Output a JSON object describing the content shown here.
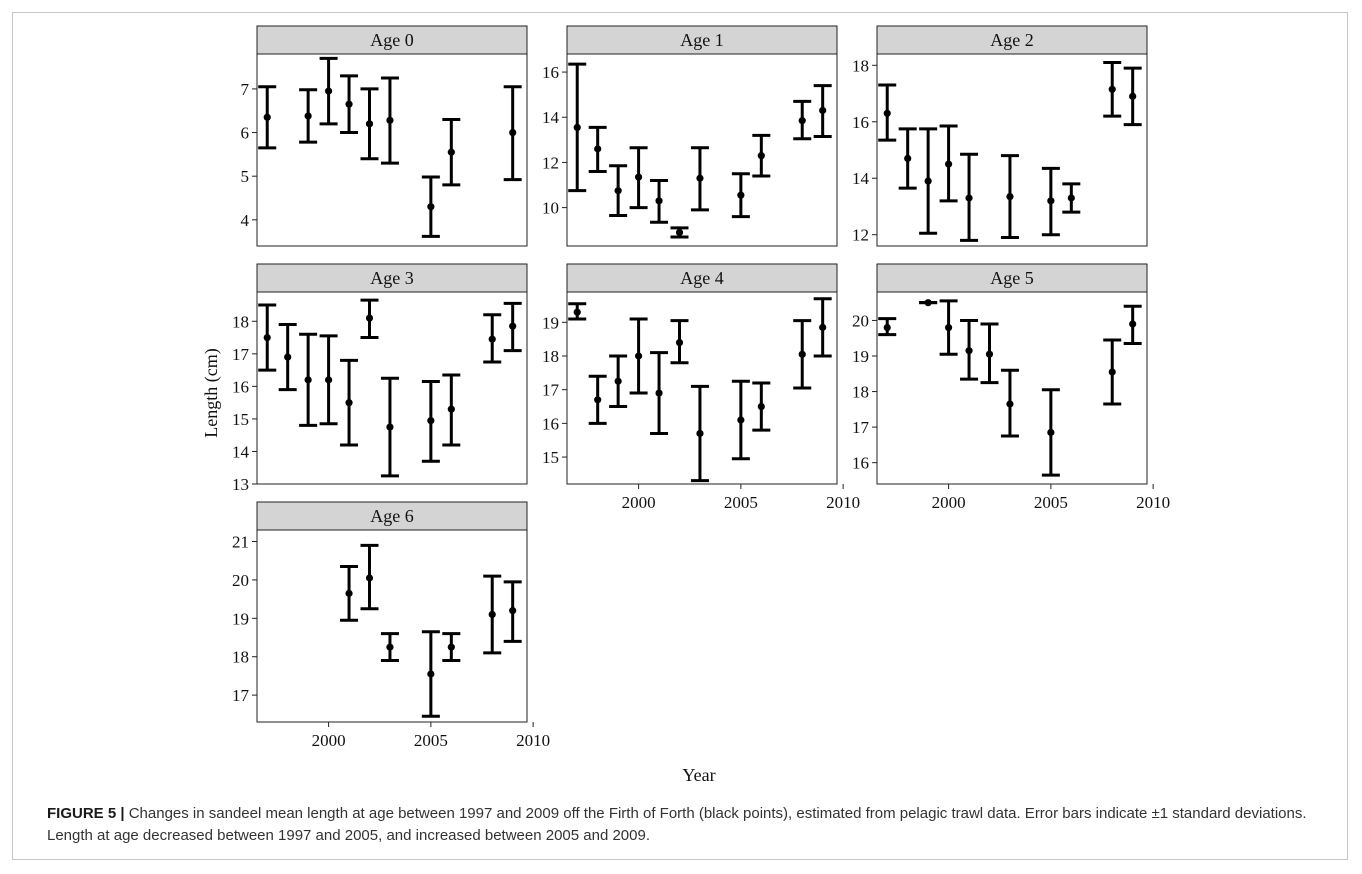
{
  "figure": {
    "ylabel": "Length (cm)",
    "xlabel": "Year",
    "caption_label": "FIGURE 5 |",
    "caption_text": " Changes in sandeel mean length at age between 1997 and 2009 off the Firth of Forth (black points), estimated from pelagic trawl data. Error bars indicate ±1 standard deviations. Length at age decreased between 1997 and 2005, and increased between 2005 and 2009."
  },
  "chart_data": [
    {
      "type": "scatter",
      "title": "Age 0",
      "xlim": [
        1996.5,
        2009.7
      ],
      "ylim": [
        3.4,
        7.8
      ],
      "yticks": [
        4,
        5,
        6,
        7
      ],
      "xticks": [],
      "grid": false,
      "points": [
        {
          "x": 1997,
          "y": 6.35,
          "lo": 5.65,
          "hi": 7.05
        },
        {
          "x": 1999,
          "y": 6.38,
          "lo": 5.78,
          "hi": 6.98
        },
        {
          "x": 2000,
          "y": 6.95,
          "lo": 6.2,
          "hi": 7.7
        },
        {
          "x": 2001,
          "y": 6.65,
          "lo": 6.0,
          "hi": 7.3
        },
        {
          "x": 2002,
          "y": 6.2,
          "lo": 5.4,
          "hi": 7.0
        },
        {
          "x": 2003,
          "y": 6.28,
          "lo": 5.3,
          "hi": 7.25
        },
        {
          "x": 2005,
          "y": 4.3,
          "lo": 3.62,
          "hi": 4.98
        },
        {
          "x": 2006,
          "y": 5.55,
          "lo": 4.8,
          "hi": 6.3
        },
        {
          "x": 2009,
          "y": 6.0,
          "lo": 4.92,
          "hi": 7.05
        }
      ]
    },
    {
      "type": "scatter",
      "title": "Age 1",
      "xlim": [
        1996.5,
        2009.7
      ],
      "ylim": [
        8.3,
        16.8
      ],
      "yticks": [
        10,
        12,
        14,
        16
      ],
      "xticks": [],
      "grid": false,
      "points": [
        {
          "x": 1997,
          "y": 13.55,
          "lo": 10.75,
          "hi": 16.35
        },
        {
          "x": 1998,
          "y": 12.6,
          "lo": 11.6,
          "hi": 13.55
        },
        {
          "x": 1999,
          "y": 10.75,
          "lo": 9.65,
          "hi": 11.85
        },
        {
          "x": 2000,
          "y": 11.35,
          "lo": 10.0,
          "hi": 12.65
        },
        {
          "x": 2001,
          "y": 10.3,
          "lo": 9.35,
          "hi": 11.2
        },
        {
          "x": 2002,
          "y": 8.9,
          "lo": 8.7,
          "hi": 9.1
        },
        {
          "x": 2003,
          "y": 11.3,
          "lo": 9.9,
          "hi": 12.65
        },
        {
          "x": 2005,
          "y": 10.55,
          "lo": 9.6,
          "hi": 11.5
        },
        {
          "x": 2006,
          "y": 12.3,
          "lo": 11.4,
          "hi": 13.2
        },
        {
          "x": 2008,
          "y": 13.85,
          "lo": 13.05,
          "hi": 14.7
        },
        {
          "x": 2009,
          "y": 14.3,
          "lo": 13.15,
          "hi": 15.4
        }
      ]
    },
    {
      "type": "scatter",
      "title": "Age 2",
      "xlim": [
        1996.5,
        2009.7
      ],
      "ylim": [
        11.6,
        18.4
      ],
      "yticks": [
        12,
        14,
        16,
        18
      ],
      "xticks": [],
      "grid": false,
      "points": [
        {
          "x": 1997,
          "y": 16.3,
          "lo": 15.35,
          "hi": 17.3
        },
        {
          "x": 1998,
          "y": 14.7,
          "lo": 13.65,
          "hi": 15.75
        },
        {
          "x": 1999,
          "y": 13.9,
          "lo": 12.05,
          "hi": 15.75
        },
        {
          "x": 2000,
          "y": 14.5,
          "lo": 13.2,
          "hi": 15.85
        },
        {
          "x": 2001,
          "y": 13.3,
          "lo": 11.8,
          "hi": 14.85
        },
        {
          "x": 2003,
          "y": 13.35,
          "lo": 11.9,
          "hi": 14.8
        },
        {
          "x": 2005,
          "y": 13.2,
          "lo": 12.0,
          "hi": 14.35
        },
        {
          "x": 2006,
          "y": 13.3,
          "lo": 12.8,
          "hi": 13.8
        },
        {
          "x": 2008,
          "y": 17.15,
          "lo": 16.2,
          "hi": 18.1
        },
        {
          "x": 2009,
          "y": 16.9,
          "lo": 15.9,
          "hi": 17.9
        }
      ]
    },
    {
      "type": "scatter",
      "title": "Age 3",
      "xlim": [
        1996.5,
        2009.7
      ],
      "ylim": [
        13.0,
        18.9
      ],
      "yticks": [
        13,
        14,
        15,
        16,
        17,
        18
      ],
      "xticks": [],
      "grid": false,
      "points": [
        {
          "x": 1997,
          "y": 17.5,
          "lo": 16.5,
          "hi": 18.5
        },
        {
          "x": 1998,
          "y": 16.9,
          "lo": 15.9,
          "hi": 17.9
        },
        {
          "x": 1999,
          "y": 16.2,
          "lo": 14.8,
          "hi": 17.6
        },
        {
          "x": 2000,
          "y": 16.2,
          "lo": 14.85,
          "hi": 17.55
        },
        {
          "x": 2001,
          "y": 15.5,
          "lo": 14.2,
          "hi": 16.8
        },
        {
          "x": 2002,
          "y": 18.1,
          "lo": 17.5,
          "hi": 18.65
        },
        {
          "x": 2003,
          "y": 14.75,
          "lo": 13.25,
          "hi": 16.25
        },
        {
          "x": 2005,
          "y": 14.95,
          "lo": 13.7,
          "hi": 16.15
        },
        {
          "x": 2006,
          "y": 15.3,
          "lo": 14.2,
          "hi": 16.35
        },
        {
          "x": 2008,
          "y": 17.45,
          "lo": 16.75,
          "hi": 18.2
        },
        {
          "x": 2009,
          "y": 17.85,
          "lo": 17.1,
          "hi": 18.55
        }
      ]
    },
    {
      "type": "scatter",
      "title": "Age 4",
      "xlim": [
        1996.5,
        2009.7
      ],
      "ylim": [
        14.2,
        19.9
      ],
      "yticks": [
        15,
        16,
        17,
        18,
        19
      ],
      "xticks": [
        2000,
        2005,
        2010
      ],
      "grid": false,
      "points": [
        {
          "x": 1997,
          "y": 19.3,
          "lo": 19.1,
          "hi": 19.55
        },
        {
          "x": 1998,
          "y": 16.7,
          "lo": 16.0,
          "hi": 17.4
        },
        {
          "x": 1999,
          "y": 17.25,
          "lo": 16.5,
          "hi": 18.0
        },
        {
          "x": 2000,
          "y": 18.0,
          "lo": 16.9,
          "hi": 19.1
        },
        {
          "x": 2001,
          "y": 16.9,
          "lo": 15.7,
          "hi": 18.1
        },
        {
          "x": 2002,
          "y": 18.4,
          "lo": 17.8,
          "hi": 19.05
        },
        {
          "x": 2003,
          "y": 15.7,
          "lo": 14.3,
          "hi": 17.1
        },
        {
          "x": 2005,
          "y": 16.1,
          "lo": 14.95,
          "hi": 17.25
        },
        {
          "x": 2006,
          "y": 16.5,
          "lo": 15.8,
          "hi": 17.2
        },
        {
          "x": 2008,
          "y": 18.05,
          "lo": 17.05,
          "hi": 19.05
        },
        {
          "x": 2009,
          "y": 18.85,
          "lo": 18.0,
          "hi": 19.7
        }
      ]
    },
    {
      "type": "scatter",
      "title": "Age 5",
      "xlim": [
        1996.5,
        2009.7
      ],
      "ylim": [
        15.4,
        20.8
      ],
      "yticks": [
        16,
        17,
        18,
        19,
        20
      ],
      "xticks": [
        2000,
        2005,
        2010
      ],
      "grid": false,
      "points": [
        {
          "x": 1997,
          "y": 19.8,
          "lo": 19.6,
          "hi": 20.05
        },
        {
          "x": 1999,
          "y": 20.5,
          "lo": 20.5,
          "hi": 20.5
        },
        {
          "x": 2000,
          "y": 19.8,
          "lo": 19.05,
          "hi": 20.55
        },
        {
          "x": 2001,
          "y": 19.15,
          "lo": 18.35,
          "hi": 20.0
        },
        {
          "x": 2002,
          "y": 19.05,
          "lo": 18.25,
          "hi": 19.9
        },
        {
          "x": 2003,
          "y": 17.65,
          "lo": 16.75,
          "hi": 18.6
        },
        {
          "x": 2005,
          "y": 16.85,
          "lo": 15.65,
          "hi": 18.05
        },
        {
          "x": 2008,
          "y": 18.55,
          "lo": 17.65,
          "hi": 19.45
        },
        {
          "x": 2009,
          "y": 19.9,
          "lo": 19.35,
          "hi": 20.4
        }
      ]
    },
    {
      "type": "scatter",
      "title": "Age 6",
      "xlim": [
        1996.5,
        2009.7
      ],
      "ylim": [
        16.3,
        21.3
      ],
      "yticks": [
        17,
        18,
        19,
        20,
        21
      ],
      "xticks": [
        2000,
        2005,
        2010
      ],
      "grid": false,
      "points": [
        {
          "x": 2001,
          "y": 19.65,
          "lo": 18.95,
          "hi": 20.35
        },
        {
          "x": 2002,
          "y": 20.05,
          "lo": 19.25,
          "hi": 20.9
        },
        {
          "x": 2003,
          "y": 18.25,
          "lo": 17.9,
          "hi": 18.6
        },
        {
          "x": 2005,
          "y": 17.55,
          "lo": 16.45,
          "hi": 18.65
        },
        {
          "x": 2006,
          "y": 18.25,
          "lo": 17.9,
          "hi": 18.6
        },
        {
          "x": 2008,
          "y": 19.1,
          "lo": 18.1,
          "hi": 20.1
        },
        {
          "x": 2009,
          "y": 19.2,
          "lo": 18.4,
          "hi": 19.95
        }
      ]
    }
  ]
}
